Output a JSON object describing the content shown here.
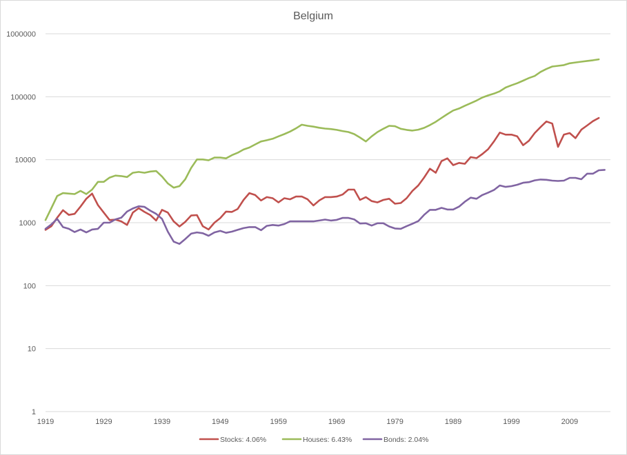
{
  "chart_data": {
    "type": "line",
    "title": "Belgium",
    "xlabel": "",
    "ylabel": "",
    "yscale": "log",
    "ylim": [
      1,
      1000000
    ],
    "xlim": [
      1919,
      2016
    ],
    "y_ticks": [
      1,
      10,
      100,
      1000,
      10000,
      100000,
      1000000
    ],
    "y_tick_labels": [
      "1",
      "10",
      "100",
      "1000",
      "10000",
      "100000",
      "1000000"
    ],
    "x_ticks": [
      1919,
      1929,
      1939,
      1949,
      1959,
      1969,
      1979,
      1989,
      1999,
      2009
    ],
    "x_tick_labels": [
      "1919",
      "1929",
      "1939",
      "1949",
      "1959",
      "1969",
      "1979",
      "1989",
      "1999",
      "2009"
    ],
    "grid": "horizontal",
    "legend_position": "bottom",
    "series": [
      {
        "name": "Stocks: 4.06%",
        "color": "#c0504d",
        "points": [
          [
            1919,
            770
          ],
          [
            1920,
            880
          ],
          [
            1921,
            1200
          ],
          [
            1922,
            1580
          ],
          [
            1923,
            1330
          ],
          [
            1924,
            1380
          ],
          [
            1925,
            1800
          ],
          [
            1926,
            2400
          ],
          [
            1927,
            2900
          ],
          [
            1928,
            1900
          ],
          [
            1929,
            1450
          ],
          [
            1930,
            1100
          ],
          [
            1931,
            1120
          ],
          [
            1932,
            1050
          ],
          [
            1933,
            920
          ],
          [
            1934,
            1450
          ],
          [
            1935,
            1700
          ],
          [
            1936,
            1480
          ],
          [
            1937,
            1320
          ],
          [
            1938,
            1080
          ],
          [
            1939,
            1600
          ],
          [
            1940,
            1450
          ],
          [
            1941,
            1050
          ],
          [
            1942,
            870
          ],
          [
            1943,
            1030
          ],
          [
            1944,
            1300
          ],
          [
            1945,
            1320
          ],
          [
            1946,
            880
          ],
          [
            1947,
            780
          ],
          [
            1948,
            1000
          ],
          [
            1949,
            1180
          ],
          [
            1950,
            1500
          ],
          [
            1951,
            1480
          ],
          [
            1952,
            1650
          ],
          [
            1953,
            2300
          ],
          [
            1954,
            2950
          ],
          [
            1955,
            2750
          ],
          [
            1956,
            2250
          ],
          [
            1957,
            2550
          ],
          [
            1958,
            2450
          ],
          [
            1959,
            2100
          ],
          [
            1960,
            2450
          ],
          [
            1961,
            2350
          ],
          [
            1962,
            2600
          ],
          [
            1963,
            2600
          ],
          [
            1964,
            2350
          ],
          [
            1965,
            1880
          ],
          [
            1966,
            2250
          ],
          [
            1967,
            2550
          ],
          [
            1968,
            2550
          ],
          [
            1969,
            2600
          ],
          [
            1970,
            2800
          ],
          [
            1971,
            3350
          ],
          [
            1972,
            3350
          ],
          [
            1973,
            2300
          ],
          [
            1974,
            2550
          ],
          [
            1975,
            2200
          ],
          [
            1976,
            2100
          ],
          [
            1977,
            2300
          ],
          [
            1978,
            2400
          ],
          [
            1979,
            2000
          ],
          [
            1980,
            2050
          ],
          [
            1981,
            2450
          ],
          [
            1982,
            3200
          ],
          [
            1983,
            3900
          ],
          [
            1984,
            5200
          ],
          [
            1985,
            7200
          ],
          [
            1986,
            6200
          ],
          [
            1987,
            9500
          ],
          [
            1988,
            10500
          ],
          [
            1989,
            8200
          ],
          [
            1990,
            8900
          ],
          [
            1991,
            8600
          ],
          [
            1992,
            11000
          ],
          [
            1993,
            10600
          ],
          [
            1994,
            12300
          ],
          [
            1995,
            14700
          ],
          [
            1996,
            19500
          ],
          [
            1997,
            27000
          ],
          [
            1998,
            25000
          ],
          [
            1999,
            25000
          ],
          [
            2000,
            23500
          ],
          [
            2001,
            17000
          ],
          [
            2002,
            20000
          ],
          [
            2003,
            26500
          ],
          [
            2004,
            33000
          ],
          [
            2005,
            40500
          ],
          [
            2006,
            37500
          ],
          [
            2007,
            16000
          ],
          [
            2008,
            25000
          ],
          [
            2009,
            26500
          ],
          [
            2010,
            22000
          ],
          [
            2011,
            30000
          ],
          [
            2012,
            35000
          ],
          [
            2013,
            41000
          ],
          [
            2014,
            46000
          ]
        ]
      },
      {
        "name": "Houses: 6.43%",
        "color": "#9bbb59",
        "points": [
          [
            1919,
            1100
          ],
          [
            1920,
            1700
          ],
          [
            1921,
            2650
          ],
          [
            1922,
            2950
          ],
          [
            1923,
            2900
          ],
          [
            1924,
            2850
          ],
          [
            1925,
            3200
          ],
          [
            1926,
            2850
          ],
          [
            1927,
            3350
          ],
          [
            1928,
            4450
          ],
          [
            1929,
            4450
          ],
          [
            1930,
            5200
          ],
          [
            1931,
            5600
          ],
          [
            1932,
            5500
          ],
          [
            1933,
            5300
          ],
          [
            1934,
            6200
          ],
          [
            1935,
            6400
          ],
          [
            1936,
            6200
          ],
          [
            1937,
            6500
          ],
          [
            1938,
            6600
          ],
          [
            1939,
            5400
          ],
          [
            1940,
            4200
          ],
          [
            1941,
            3600
          ],
          [
            1942,
            3800
          ],
          [
            1943,
            4900
          ],
          [
            1944,
            7400
          ],
          [
            1945,
            10100
          ],
          [
            1946,
            10100
          ],
          [
            1947,
            9800
          ],
          [
            1948,
            10800
          ],
          [
            1949,
            10800
          ],
          [
            1950,
            10500
          ],
          [
            1951,
            11800
          ],
          [
            1952,
            12900
          ],
          [
            1953,
            14500
          ],
          [
            1954,
            15600
          ],
          [
            1955,
            17500
          ],
          [
            1956,
            19500
          ],
          [
            1957,
            20400
          ],
          [
            1958,
            21500
          ],
          [
            1959,
            23500
          ],
          [
            1960,
            25500
          ],
          [
            1961,
            28000
          ],
          [
            1962,
            31500
          ],
          [
            1963,
            36000
          ],
          [
            1964,
            34500
          ],
          [
            1965,
            33500
          ],
          [
            1966,
            32200
          ],
          [
            1967,
            31200
          ],
          [
            1968,
            30700
          ],
          [
            1969,
            29800
          ],
          [
            1970,
            28500
          ],
          [
            1971,
            27500
          ],
          [
            1972,
            25500
          ],
          [
            1973,
            22500
          ],
          [
            1974,
            19500
          ],
          [
            1975,
            23500
          ],
          [
            1976,
            27500
          ],
          [
            1977,
            31000
          ],
          [
            1978,
            34500
          ],
          [
            1979,
            34000
          ],
          [
            1980,
            31000
          ],
          [
            1981,
            29800
          ],
          [
            1982,
            29000
          ],
          [
            1983,
            30000
          ],
          [
            1984,
            32000
          ],
          [
            1985,
            35500
          ],
          [
            1986,
            40000
          ],
          [
            1987,
            46000
          ],
          [
            1988,
            53000
          ],
          [
            1989,
            60500
          ],
          [
            1990,
            65000
          ],
          [
            1991,
            72000
          ],
          [
            1992,
            79000
          ],
          [
            1993,
            87000
          ],
          [
            1994,
            97000
          ],
          [
            1995,
            105000
          ],
          [
            1996,
            112000
          ],
          [
            1997,
            122000
          ],
          [
            1998,
            140000
          ],
          [
            1999,
            152000
          ],
          [
            2000,
            164000
          ],
          [
            2001,
            180000
          ],
          [
            2002,
            198000
          ],
          [
            2003,
            214000
          ],
          [
            2004,
            248000
          ],
          [
            2005,
            276000
          ],
          [
            2006,
            302000
          ],
          [
            2007,
            310000
          ],
          [
            2008,
            318000
          ],
          [
            2009,
            340000
          ],
          [
            2010,
            350000
          ],
          [
            2011,
            360000
          ],
          [
            2012,
            370000
          ],
          [
            2013,
            380000
          ],
          [
            2014,
            392000
          ]
        ]
      },
      {
        "name": "Bonds: 2.04%",
        "color": "#8064a2",
        "points": [
          [
            1919,
            800
          ],
          [
            1920,
            940
          ],
          [
            1921,
            1150
          ],
          [
            1922,
            850
          ],
          [
            1923,
            800
          ],
          [
            1924,
            710
          ],
          [
            1925,
            780
          ],
          [
            1926,
            700
          ],
          [
            1927,
            780
          ],
          [
            1928,
            800
          ],
          [
            1929,
            1000
          ],
          [
            1930,
            1000
          ],
          [
            1931,
            1130
          ],
          [
            1932,
            1200
          ],
          [
            1933,
            1500
          ],
          [
            1934,
            1680
          ],
          [
            1935,
            1820
          ],
          [
            1936,
            1780
          ],
          [
            1937,
            1550
          ],
          [
            1938,
            1380
          ],
          [
            1939,
            1150
          ],
          [
            1940,
            720
          ],
          [
            1941,
            500
          ],
          [
            1942,
            460
          ],
          [
            1943,
            550
          ],
          [
            1944,
            670
          ],
          [
            1945,
            700
          ],
          [
            1946,
            680
          ],
          [
            1947,
            620
          ],
          [
            1948,
            700
          ],
          [
            1949,
            740
          ],
          [
            1950,
            690
          ],
          [
            1951,
            720
          ],
          [
            1952,
            770
          ],
          [
            1953,
            820
          ],
          [
            1954,
            850
          ],
          [
            1955,
            850
          ],
          [
            1956,
            760
          ],
          [
            1957,
            890
          ],
          [
            1958,
            920
          ],
          [
            1959,
            900
          ],
          [
            1960,
            950
          ],
          [
            1961,
            1050
          ],
          [
            1962,
            1050
          ],
          [
            1963,
            1050
          ],
          [
            1964,
            1050
          ],
          [
            1965,
            1050
          ],
          [
            1966,
            1080
          ],
          [
            1967,
            1120
          ],
          [
            1968,
            1080
          ],
          [
            1969,
            1110
          ],
          [
            1970,
            1190
          ],
          [
            1971,
            1190
          ],
          [
            1972,
            1130
          ],
          [
            1973,
            970
          ],
          [
            1974,
            980
          ],
          [
            1975,
            900
          ],
          [
            1976,
            980
          ],
          [
            1977,
            980
          ],
          [
            1978,
            870
          ],
          [
            1979,
            810
          ],
          [
            1980,
            800
          ],
          [
            1981,
            880
          ],
          [
            1982,
            960
          ],
          [
            1983,
            1060
          ],
          [
            1984,
            1330
          ],
          [
            1985,
            1600
          ],
          [
            1986,
            1600
          ],
          [
            1987,
            1720
          ],
          [
            1988,
            1620
          ],
          [
            1989,
            1620
          ],
          [
            1990,
            1800
          ],
          [
            1991,
            2150
          ],
          [
            1992,
            2500
          ],
          [
            1993,
            2400
          ],
          [
            1994,
            2750
          ],
          [
            1995,
            3000
          ],
          [
            1996,
            3300
          ],
          [
            1997,
            3900
          ],
          [
            1998,
            3700
          ],
          [
            1999,
            3800
          ],
          [
            2000,
            4000
          ],
          [
            2001,
            4300
          ],
          [
            2002,
            4400
          ],
          [
            2003,
            4700
          ],
          [
            2004,
            4850
          ],
          [
            2005,
            4800
          ],
          [
            2006,
            4650
          ],
          [
            2007,
            4600
          ],
          [
            2008,
            4650
          ],
          [
            2009,
            5150
          ],
          [
            2010,
            5150
          ],
          [
            2011,
            4900
          ],
          [
            2012,
            6000
          ],
          [
            2013,
            6000
          ],
          [
            2014,
            6800
          ],
          [
            2015,
            6900
          ]
        ]
      }
    ]
  }
}
